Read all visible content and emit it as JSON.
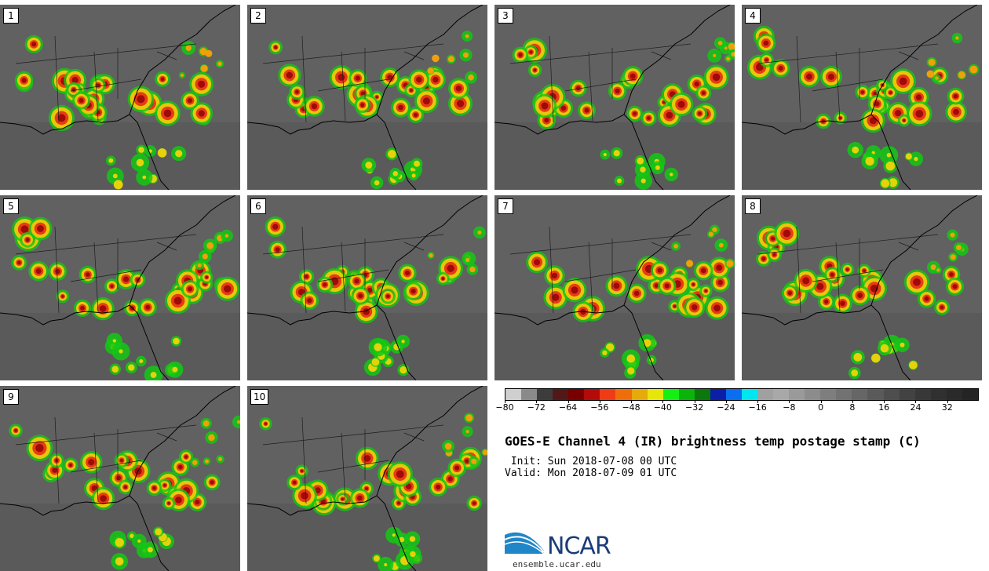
{
  "panels": [
    "1",
    "2",
    "3",
    "4",
    "5",
    "6",
    "7",
    "8",
    "9",
    "10"
  ],
  "colorbar": {
    "colors": [
      "#cfcfcf",
      "#8a8a8a",
      "#3c3c3c",
      "#521818",
      "#780000",
      "#b40a0a",
      "#f03c14",
      "#f06e0a",
      "#e6aa0a",
      "#e6e60a",
      "#14f014",
      "#0ab40a",
      "#0a780a",
      "#0a1eaa",
      "#0a6ef0",
      "#00e6f0",
      "#a0a0a0",
      "#a8a8a8",
      "#9a9a9a",
      "#8c8c8c",
      "#7e7e7e",
      "#727272",
      "#666666",
      "#5a5a5a",
      "#4e4e4e",
      "#424242",
      "#383838",
      "#303030",
      "#2a2a2a",
      "#242424"
    ],
    "ticks": [
      "−80",
      "−72",
      "−64",
      "−56",
      "−48",
      "−40",
      "−32",
      "−24",
      "−16",
      "−8",
      "0",
      "8",
      "16",
      "24",
      "32"
    ]
  },
  "title": "GOES-E Channel 4 (IR) brightness temp postage stamp (C)",
  "init": " Init: Sun 2018-07-08 00 UTC",
  "valid": "Valid: Mon 2018-07-09 01 UTC",
  "logo": {
    "name": "NCAR",
    "url": "ensemble.ucar.edu"
  }
}
